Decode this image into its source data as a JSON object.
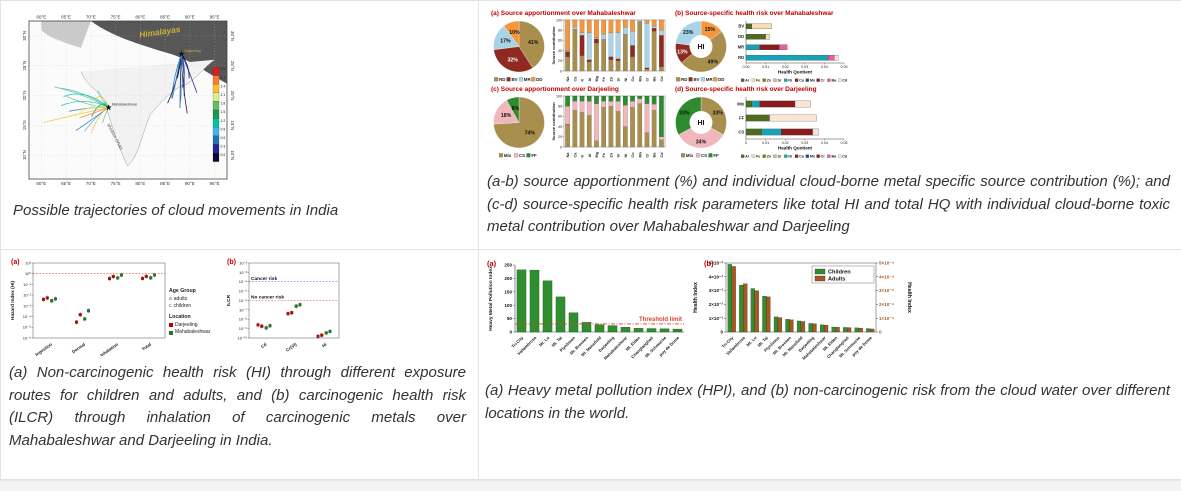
{
  "page": {
    "bg": "#ffffff",
    "cell_bg": "#ffffff",
    "border_color": "#e4e4e4",
    "title_red": "#c00000"
  },
  "cells": {
    "map": {
      "caption": "Possible trajectories of cloud movements in India"
    },
    "source": {
      "caption": " (a-b) source apportionment (%) and individual cloud-borne metal specific source contribution (%); and (c-d) source-specific health risk parameters like total HI and total HQ with individual cloud-borne toxic metal contribution over Mahabaleshwar and Darjeeling"
    },
    "risk": {
      "caption": " (a) Non-carcinogenic health risk (HI) through different exposure routes for children and adults, and (b) carcinogenic health risk (ILCR) through inhalation of carcinogenic metals over Mahabaleshwar and Darjeeling in India."
    },
    "hpi": {
      "caption": " (a) Heavy metal pollution index (HPI), and (b) non-carcinogenic risk from the cloud water over different locations in the world."
    }
  },
  "map": {
    "lon_ticks": [
      "60°E",
      "65°E",
      "70°E",
      "75°E",
      "80°E",
      "85°E",
      "90°E",
      "95°E"
    ],
    "lat_ticks": [
      "30°N",
      "25°N",
      "20°N",
      "15°N",
      "10°N"
    ],
    "himalayas_label": "Himalayas",
    "western_ghats_label": "Western Ghats",
    "sites": [
      "Mahabaleshwar",
      "Darjeeling"
    ],
    "colorbar_ticks": [
      "3.0",
      "2.7",
      "2.4",
      "2.1",
      "1.8",
      "1.5",
      "1.2",
      "0.9",
      "0.6",
      "0.3",
      "0.0"
    ],
    "colorbar_colors": [
      "#e31a1c",
      "#f97b2f",
      "#fdbf2d",
      "#d9ef8b",
      "#66bd63",
      "#1a9850",
      "#00c2a8",
      "#41b6e6",
      "#2171b5",
      "#23239a",
      "#0a0a30"
    ]
  },
  "risk_legend": {
    "age_title": "Age Group",
    "age_marks": [
      "a",
      "c"
    ],
    "ages": [
      "adults",
      "children"
    ],
    "loc_title": "Location",
    "locs": [
      {
        "name": "Darjeeling",
        "color": "#c00000"
      },
      {
        "name": "Mahabaleshwar",
        "color": "#1e7d1e"
      }
    ]
  },
  "metal_colors": {
    "Al": "#4e6b1f",
    "Fe": "#f5deb3",
    "Zn": "#808000",
    "Sr": "#d9b38c",
    "Ni": "#17a2b8",
    "Cu": "#7b2d26",
    "Mn": "#1f4e79",
    "Cr": "#8b1a1a",
    "Ba": "#e85d9e",
    "Cd": "#fbe5d6"
  },
  "chart_data": [
    {
      "id": "src_pie_mhb",
      "type": "pie",
      "title": "(a)  Source apportionment over Mahabaleshwar",
      "labels": [
        "RD",
        "BV",
        "MR",
        "DD"
      ],
      "values": [
        41,
        32,
        17,
        10
      ],
      "colors": [
        "#a98f4d",
        "#8f2a21",
        "#a8d4e8",
        "#f5953c"
      ],
      "dark": [
        1
      ],
      "legend": {
        "labels": [
          "RD",
          "BV",
          "MR",
          "DD"
        ],
        "colors": [
          "#a98f4d",
          "#8f2a21",
          "#a8d4e8",
          "#f5953c"
        ]
      }
    },
    {
      "id": "src_bar_mhb",
      "type": "stacked-bar",
      "ylabel": "Source contribution",
      "ylim": [
        0,
        100
      ],
      "yticks": [
        0,
        20,
        40,
        60,
        80,
        100
      ],
      "categories": [
        "Na",
        "Ca",
        "K",
        "Al",
        "Mg",
        "Fe",
        "Zn",
        "Sr",
        "Ni",
        "Cu",
        "Mn",
        "Cr",
        "Ba",
        "Cd"
      ],
      "series": [
        {
          "name": "RD",
          "color": "#a98f4d",
          "values": [
            28,
            82,
            30,
            18,
            55,
            62,
            22,
            20,
            72,
            28,
            97,
            4,
            78,
            8
          ]
        },
        {
          "name": "BV",
          "color": "#8f2a21",
          "values": [
            10,
            0,
            40,
            4,
            8,
            0,
            6,
            4,
            0,
            22,
            0,
            2,
            6,
            62
          ]
        },
        {
          "name": "MR",
          "color": "#a8d4e8",
          "values": [
            2,
            4,
            5,
            53,
            2,
            10,
            47,
            51,
            14,
            28,
            3,
            88,
            4,
            10
          ]
        },
        {
          "name": "DD",
          "color": "#f5953c",
          "values": [
            60,
            14,
            25,
            25,
            35,
            28,
            25,
            25,
            14,
            22,
            0,
            6,
            12,
            20
          ]
        }
      ]
    },
    {
      "id": "hq_donut_mhb",
      "type": "pie",
      "title": "(b) Source-specific health risk over Mahabaleshwar",
      "hole": 0.45,
      "center": "HI",
      "labels": [
        "DD",
        "RD",
        "BV",
        "MR"
      ],
      "values": [
        15,
        49,
        13,
        23
      ],
      "colors": [
        "#f5953c",
        "#a98f4d",
        "#8f2a21",
        "#a8d4e8"
      ],
      "dark": [
        2
      ],
      "legend": {
        "labels": [
          "RD",
          "BV",
          "MR",
          "DD"
        ],
        "colors": [
          "#a98f4d",
          "#8f2a21",
          "#a8d4e8",
          "#f5953c"
        ]
      }
    },
    {
      "id": "hq_hbar_mhb",
      "type": "h-stacked-bar",
      "xlabel": "Health Quotient",
      "xmax": 0.05,
      "xticks": [
        "0.00",
        "0.01",
        "0.02",
        "0.03",
        "0.04",
        "0.05"
      ],
      "categories": [
        "BV",
        "DD",
        "MR",
        "RD"
      ],
      "metals": [
        "Al",
        "Fe",
        "Zn",
        "Sr",
        "Ni",
        "Cu",
        "Mn",
        "Cr",
        "Ba",
        "Cd"
      ],
      "bars": [
        [
          {
            "m": "Al",
            "v": 0.003
          },
          {
            "m": "Fe",
            "v": 0.01
          }
        ],
        [
          {
            "m": "Al",
            "v": 0.01
          },
          {
            "m": "Fe",
            "v": 0.002
          }
        ],
        [
          {
            "m": "Ni",
            "v": 0.007
          },
          {
            "m": "Cr",
            "v": 0.01
          },
          {
            "m": "Ba",
            "v": 0.004
          }
        ],
        [
          {
            "m": "Ni",
            "v": 0.042
          },
          {
            "m": "Ba",
            "v": 0.003
          },
          {
            "m": "Cd",
            "v": 0.002
          }
        ]
      ]
    },
    {
      "id": "src_pie_drj",
      "type": "pie",
      "title": "(c)  Source apportionment over Darjeeling",
      "labels": [
        "Mix",
        "CS",
        "FF"
      ],
      "values": [
        74,
        18,
        8
      ],
      "colors": [
        "#a98f4d",
        "#f2b6bd",
        "#2e8b2e"
      ],
      "dark": [],
      "legend": {
        "labels": [
          "Mix",
          "CS",
          "FF"
        ],
        "colors": [
          "#a98f4d",
          "#f2b6bd",
          "#2e8b2e"
        ]
      }
    },
    {
      "id": "src_bar_drj",
      "type": "stacked-bar",
      "ylabel": "Source contribution",
      "ylim": [
        0,
        100
      ],
      "yticks": [
        0,
        20,
        40,
        60,
        80,
        100
      ],
      "categories": [
        "Na",
        "Ca",
        "K",
        "Al",
        "Mg",
        "Fe",
        "Zn",
        "Sr",
        "Ni",
        "Cu",
        "Mn",
        "Cr",
        "Ba",
        "Cd"
      ],
      "series": [
        {
          "name": "Mix",
          "color": "#a98f4d",
          "values": [
            45,
            72,
            68,
            62,
            12,
            78,
            80,
            70,
            40,
            78,
            85,
            28,
            72,
            14
          ]
        },
        {
          "name": "CS",
          "color": "#f2b6bd",
          "values": [
            35,
            18,
            22,
            28,
            73,
            12,
            10,
            20,
            42,
            12,
            10,
            57,
            12,
            6
          ]
        },
        {
          "name": "FF",
          "color": "#2e8b2e",
          "values": [
            20,
            10,
            10,
            10,
            15,
            10,
            10,
            10,
            18,
            10,
            5,
            15,
            16,
            80
          ]
        }
      ]
    },
    {
      "id": "hq_donut_drj",
      "type": "pie",
      "title": "(d)  Source-specific health risk over Darjeeling",
      "hole": 0.45,
      "center": "HI",
      "labels": [
        "Mix",
        "CS",
        "FF"
      ],
      "values": [
        33,
        34,
        33
      ],
      "colors": [
        "#a98f4d",
        "#f2b6bd",
        "#2e8b2e"
      ],
      "dark": [],
      "legend": {
        "labels": [
          "Mix",
          "CS",
          "FF"
        ],
        "colors": [
          "#a98f4d",
          "#f2b6bd",
          "#2e8b2e"
        ]
      }
    },
    {
      "id": "hq_hbar_drj",
      "type": "h-stacked-bar",
      "xlabel": "Health Quotient",
      "xmax": 0.05,
      "xticks": [
        "0",
        "0.01",
        "0.02",
        "0.03",
        "0.04",
        "0.05"
      ],
      "categories": [
        "Mix",
        "FF",
        "CS"
      ],
      "metals": [
        "Al",
        "Fe",
        "Zn",
        "Sr",
        "Ni",
        "Cu",
        "Mn",
        "Cr",
        "Ba",
        "Cd"
      ],
      "bars": [
        [
          {
            "m": "Al",
            "v": 0.003
          },
          {
            "m": "Ni",
            "v": 0.004
          },
          {
            "m": "Cr",
            "v": 0.018
          },
          {
            "m": "Cd",
            "v": 0.008
          }
        ],
        [
          {
            "m": "Al",
            "v": 0.012
          },
          {
            "m": "Cd",
            "v": 0.024
          }
        ],
        [
          {
            "m": "Al",
            "v": 0.008
          },
          {
            "m": "Ni",
            "v": 0.01
          },
          {
            "m": "Cr",
            "v": 0.016
          },
          {
            "m": "Cd",
            "v": 0.003
          }
        ]
      ]
    },
    {
      "id": "hi_scatter",
      "type": "scatter",
      "tag": "(a)",
      "ylabel": "Hazard Index (HI)",
      "ylim": [
        -6,
        1
      ],
      "categories": [
        "Ingestion",
        "Dermal",
        "Inhalation",
        "Total"
      ],
      "pcolors": [
        "#c00000",
        "#c00000",
        "#1e7d1e",
        "#1e7d1e"
      ],
      "points": [
        [
          0.004,
          0.0055,
          0.003,
          0.0045
        ],
        [
          3e-05,
          0.00015,
          6e-05,
          0.00035
        ],
        [
          0.35,
          0.55,
          0.4,
          0.75
        ],
        [
          0.36,
          0.56,
          0.41,
          0.76
        ]
      ],
      "lines": [
        {
          "exp": 0,
          "color": "#e03c31",
          "label": "",
          "pos": -2
        }
      ]
    },
    {
      "id": "ilcr_scatter",
      "type": "scatter",
      "tag": "(b)",
      "ylabel": "ILCR",
      "ylim": [
        -10,
        -2
      ],
      "categories": [
        "Cd",
        "Cr(VI)",
        "Ni"
      ],
      "pcolors": [
        "#c00000",
        "#c00000",
        "#1e7d1e",
        "#1e7d1e"
      ],
      "points": [
        [
          2.5e-09,
          1.8e-09,
          1.2e-09,
          2e-09
        ],
        [
          4e-08,
          5e-08,
          2.5e-07,
          3.5e-07
        ],
        [
          1.5e-10,
          2e-10,
          3.5e-10,
          5e-10
        ]
      ],
      "lines": [
        {
          "exp": -4,
          "color": "#3355cc",
          "label": "Cancer risk",
          "pos": -2
        },
        {
          "exp": -6,
          "color": "#e03c31",
          "label": "No cancer risk",
          "pos": -2
        }
      ]
    },
    {
      "id": "hpi_bar",
      "type": "bar",
      "tag": "(a)",
      "ylabel": "Heavy Metal Pollution Index",
      "ylim": [
        0,
        250
      ],
      "yticks": [
        0,
        50,
        100,
        150,
        200,
        250
      ],
      "bar_color": "#2f8f2f",
      "threshold": 30,
      "threshold_label": "Threshold limit",
      "threshold_color": "#e03c31",
      "categories": [
        "Tri-City",
        "Vallambrosa",
        "Mt. Lu",
        "Mt. Tai",
        "Plynlimon",
        "Mt. Brocken",
        "Mt. Mansfield",
        "Darjeeling",
        "Mahabaleshwar",
        "Mt. Elden",
        "Changlanghati",
        "Mt. Schmucke",
        "puy de Dome"
      ],
      "values": [
        232,
        231,
        191,
        131,
        72,
        36,
        27,
        24,
        18,
        14,
        13,
        12,
        11
      ]
    },
    {
      "id": "hi_group_bar",
      "type": "grouped-bar",
      "tag": "(b)",
      "ylabel_left": "Health Index",
      "ylabel_right": "Health Index",
      "left_ticks": [
        "0",
        "1×10⁻²",
        "2×10⁻²",
        "3×10⁻²",
        "4×10⁻²",
        "5×10⁻²"
      ],
      "right_ticks": [
        "0",
        "1×10⁻⁴",
        "2×10⁻⁴",
        "3×10⁻⁴",
        "4×10⁻⁴",
        "5×10⁻⁴"
      ],
      "axis_max": 5,
      "categories": [
        "Tri-City",
        "Vallambrosa",
        "Mt. Lu",
        "Mt. Tai",
        "Plynlimon",
        "Mt. Brocken",
        "Mt. Mansfield",
        "Darjeeling",
        "Mahabaleshwar",
        "Mt. Elden",
        "Changlanghati",
        "Mt. Schmucke",
        "puy de Dome"
      ],
      "series": [
        {
          "name": "Children",
          "color": "#2f8f2f",
          "unit": "×10⁻²",
          "values": [
            4.9,
            3.4,
            3.15,
            2.6,
            1.1,
            0.92,
            0.8,
            0.62,
            0.52,
            0.36,
            0.33,
            0.3,
            0.25
          ]
        },
        {
          "name": "Adults",
          "color": "#a6581f",
          "unit": "×10⁻⁴",
          "values": [
            4.75,
            3.5,
            3.0,
            2.55,
            1.05,
            0.88,
            0.76,
            0.6,
            0.5,
            0.35,
            0.32,
            0.28,
            0.22
          ]
        }
      ]
    }
  ]
}
